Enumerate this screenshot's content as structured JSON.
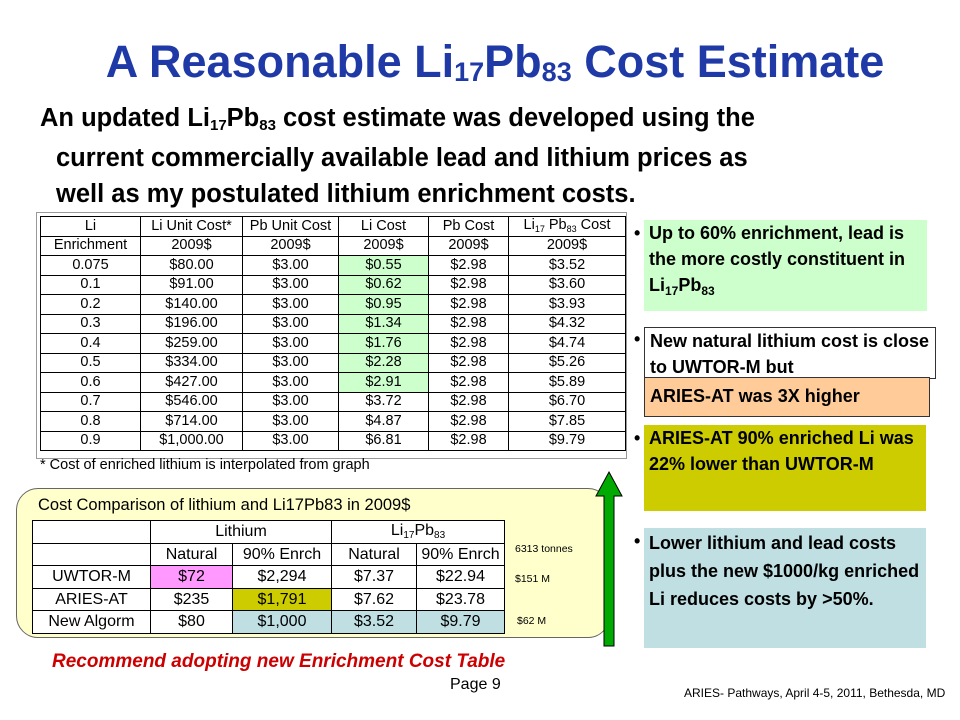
{
  "slide": {
    "title_pre": "A Reasonable Li",
    "title_sub1": "17",
    "title_mid": "Pb",
    "title_sub2": "83",
    "title_post": " Cost Estimate",
    "intro": {
      "l1_a": "An updated Li",
      "l1_s1": "17",
      "l1_b": "Pb",
      "l1_s2": "83",
      "l1_c": " cost estimate was developed using the",
      "l2": "current commercially available lead and lithium prices as",
      "l3": "well as my postulated lithium enrichment costs."
    },
    "footnote": "* Cost of enriched lithium is interpolated from graph",
    "recommendation": "Recommend adopting new Enrichment Cost Table",
    "page_number": "Page 9",
    "footer": "ARIES- Pathways, April 4-5, 2011, Bethesda, MD"
  },
  "main_table": {
    "h1": [
      "Li",
      "Li Unit Cost*",
      "Pb Unit Cost",
      "Li Cost",
      "Pb Cost"
    ],
    "h1_last_a": "Li",
    "h1_last_s1": "17",
    "h1_last_b": " Pb",
    "h1_last_s2": "83",
    "h1_last_c": " Cost",
    "h2": [
      "Enrichment",
      "2009$",
      "2009$",
      "2009$",
      "2009$",
      "2009$"
    ],
    "rows": [
      [
        "0.075",
        "$80.00",
        "$3.00",
        "$0.55",
        "$2.98",
        "$3.52"
      ],
      [
        "0.1",
        "$91.00",
        "$3.00",
        "$0.62",
        "$2.98",
        "$3.60"
      ],
      [
        "0.2",
        "$140.00",
        "$3.00",
        "$0.95",
        "$2.98",
        "$3.93"
      ],
      [
        "0.3",
        "$196.00",
        "$3.00",
        "$1.34",
        "$2.98",
        "$4.32"
      ],
      [
        "0.4",
        "$259.00",
        "$3.00",
        "$1.76",
        "$2.98",
        "$4.74"
      ],
      [
        "0.5",
        "$334.00",
        "$3.00",
        "$2.28",
        "$2.98",
        "$5.26"
      ],
      [
        "0.6",
        "$427.00",
        "$3.00",
        "$2.91",
        "$2.98",
        "$5.89"
      ],
      [
        "0.7",
        "$546.00",
        "$3.00",
        "$3.72",
        "$2.98",
        "$6.70"
      ],
      [
        "0.8",
        "$714.00",
        "$3.00",
        "$4.87",
        "$2.98",
        "$7.85"
      ],
      [
        "0.9",
        "$1,000.00",
        "$3.00",
        "$6.81",
        "$2.98",
        "$9.79"
      ]
    ]
  },
  "bullets": {
    "b1_a": "Up to 60% enrichment, lead is the more costly constituent in Li",
    "b1_s1": "17",
    "b1_b": "Pb",
    "b1_s2": "83",
    "b2_a": " New natural lithium cost is close to UWTOR-M but",
    "b2_b": "ARIES-AT was 3X higher",
    "b3": "ARIES-AT 90% enriched Li was 22% lower than UWTOR-M",
    "b4": "Lower lithium and lead costs plus the new $1000/kg enriched Li reduces costs by >50%."
  },
  "comparison": {
    "title": "Cost Comparison of lithium and Li17Pb83 in 2009$",
    "group_lithium": "Lithium",
    "group_lipb_a": "Li",
    "group_lipb_s1": "17",
    "group_lipb_b": "Pb",
    "group_lipb_s2": "83",
    "sub_headers": [
      "Natural",
      "90% Enrch",
      "Natural",
      "90% Enrch"
    ],
    "rows": [
      {
        "label": "UWTOR-M",
        "cells": [
          "$72",
          "$2,294",
          "$7.37",
          "$22.94"
        ]
      },
      {
        "label": "ARIES-AT",
        "cells": [
          "$235",
          "$1,791",
          "$7.62",
          "$23.78"
        ]
      },
      {
        "label": "New Algorm",
        "cells": [
          "$80",
          "$1,000",
          "$3.52",
          "$9.79"
        ]
      }
    ],
    "notes": [
      "6313 tonnes",
      "$151 M",
      "$62 M"
    ]
  },
  "colors": {
    "title": "#1f3aa6",
    "green_highlight": "#ccffcc",
    "orange_highlight": "#ffcc99",
    "olive_highlight": "#cccc00",
    "blue_highlight": "#bfdfe3",
    "pink_highlight": "#ff99ff",
    "cream_box": "#ffffcc",
    "recommend_text": "#cc0000",
    "arrow": "#00aa00"
  }
}
